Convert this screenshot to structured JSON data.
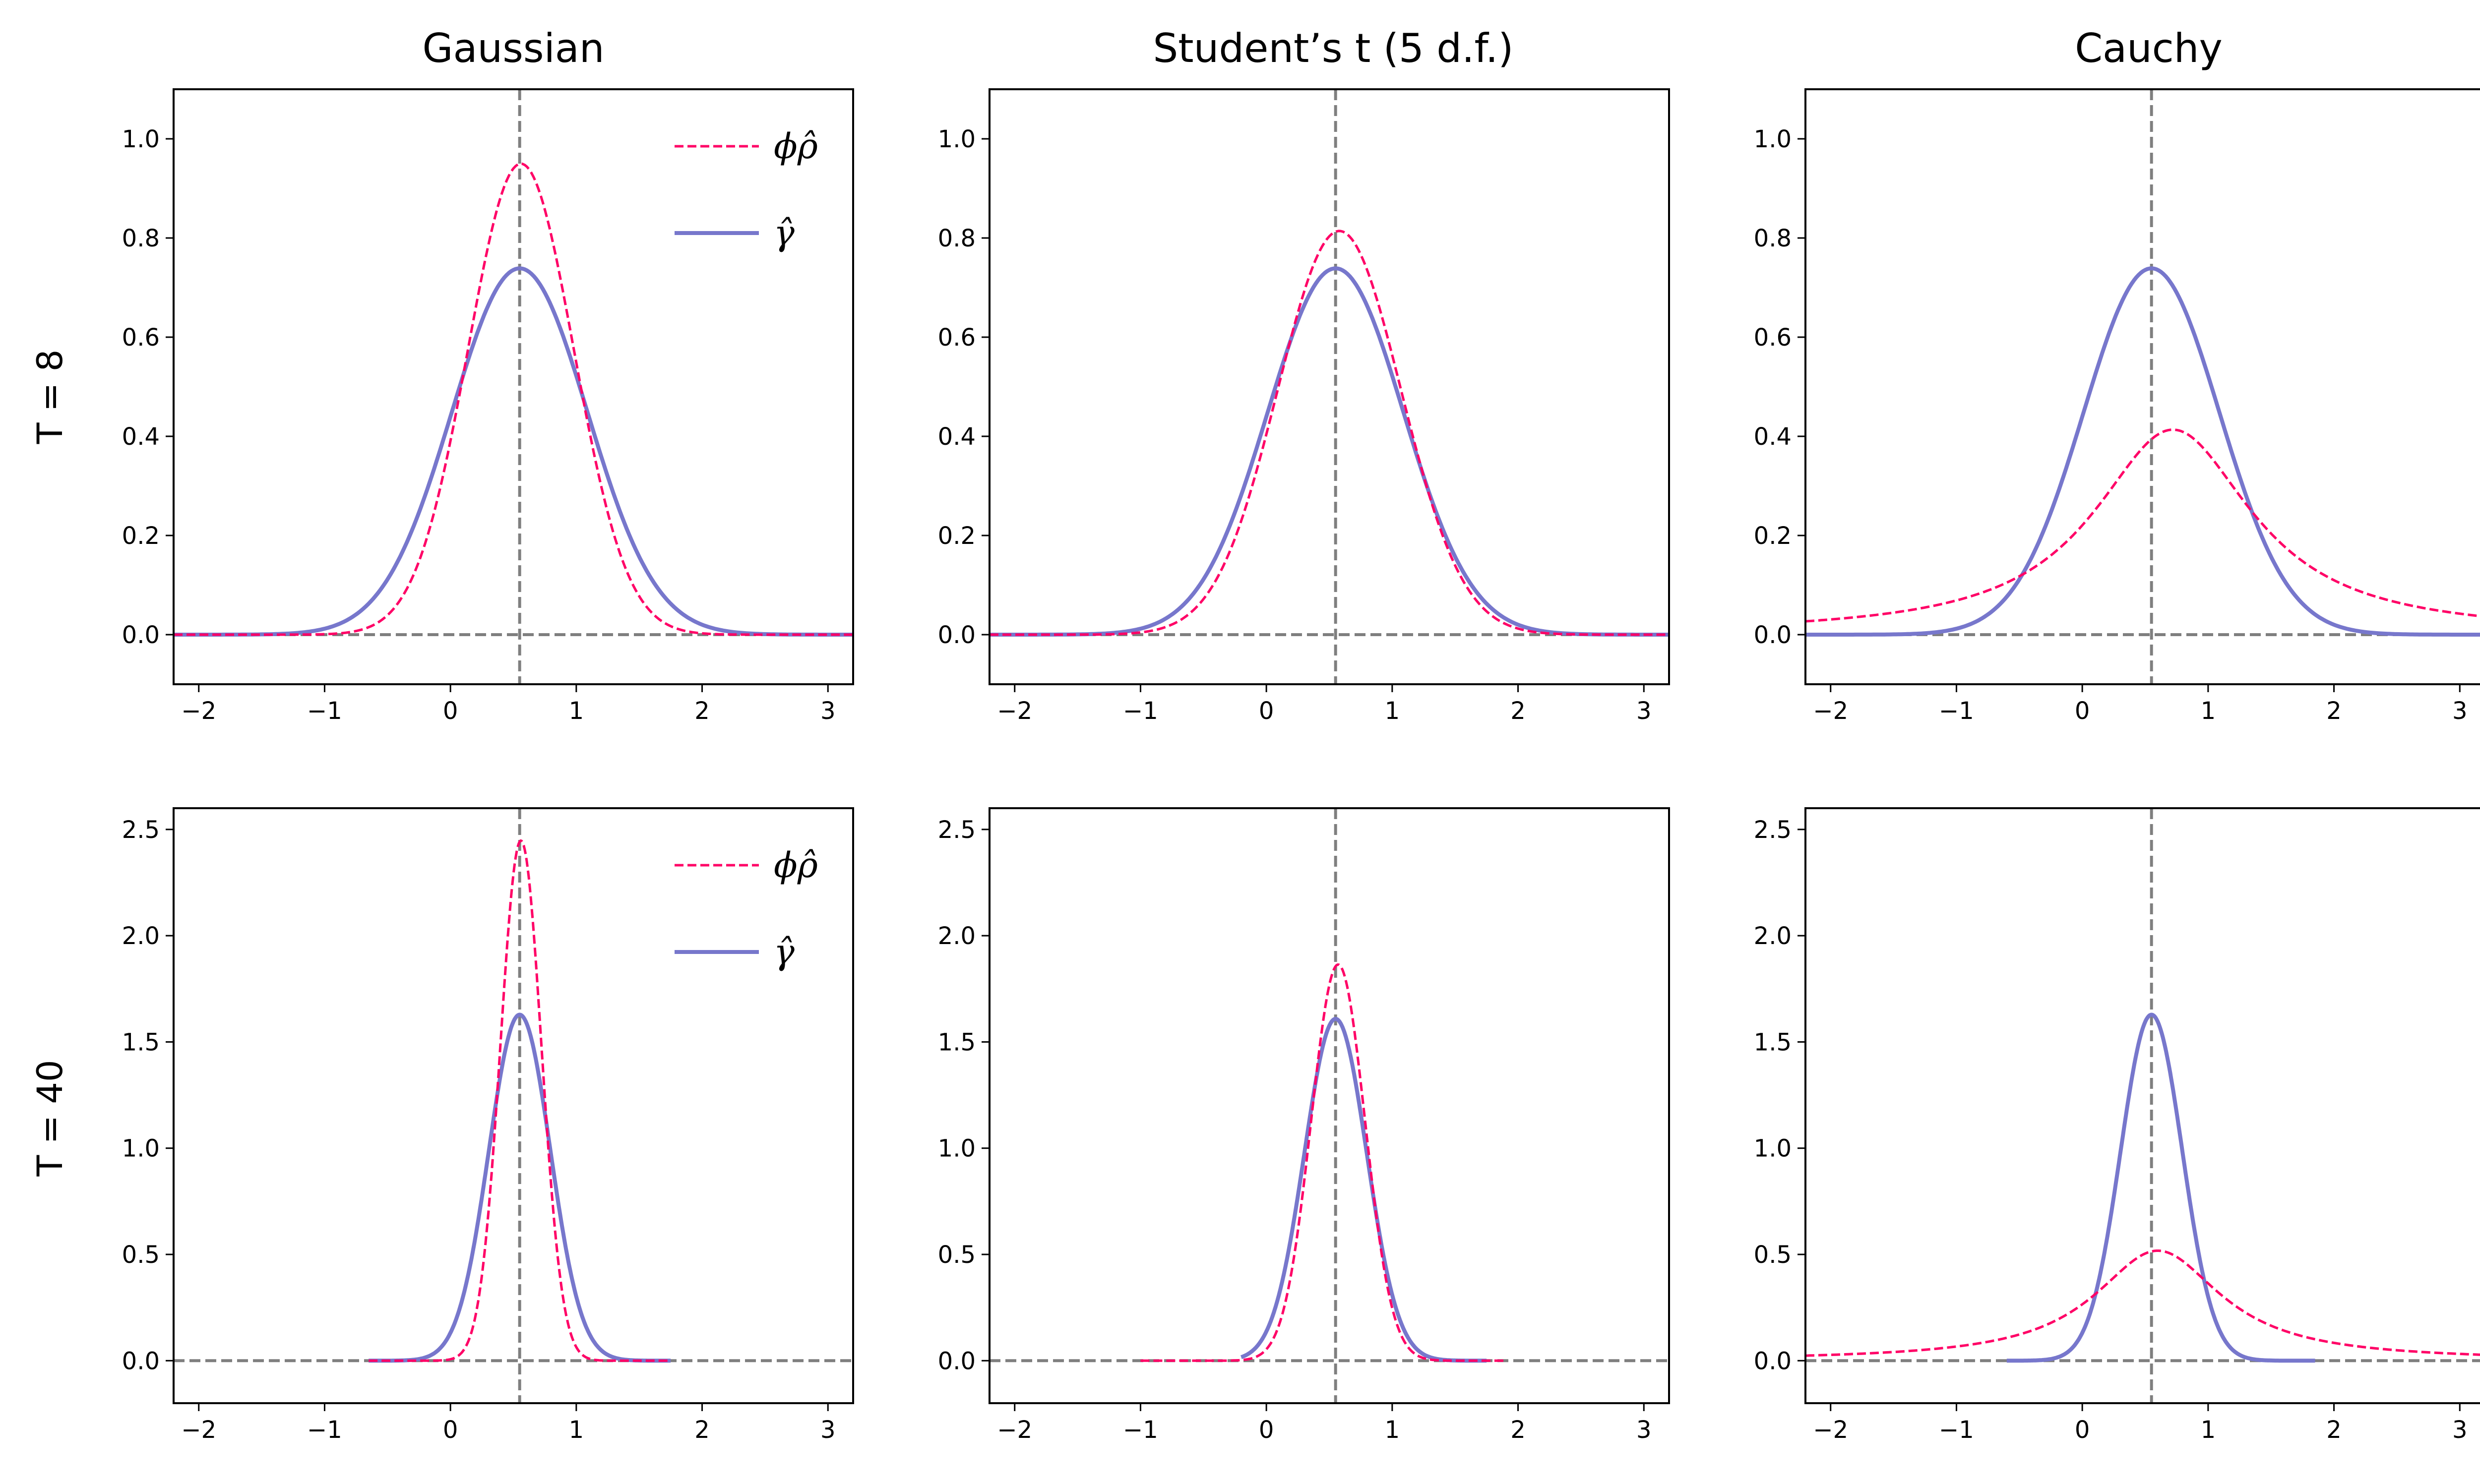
{
  "chart_data": {
    "type": "line",
    "title": "",
    "col_titles": [
      "Gaussian",
      "Student’s t (5 d.f.)",
      "Cauchy"
    ],
    "row_labels": [
      "T = 8",
      "T = 40"
    ],
    "colors": {
      "phi": "#ff0066",
      "gamma": "#7777cc",
      "ref": "#7f7f7f",
      "axis": "#000000"
    },
    "legend": [
      {
        "label": "ϕρ̂",
        "style": "dashed",
        "color": "#ff0066"
      },
      {
        "label": "γ̂",
        "style": "solid",
        "color": "#7777cc"
      }
    ],
    "xlim": [
      -2.2,
      3.2
    ],
    "xticks": [
      -2,
      -1,
      0,
      1,
      2,
      3
    ],
    "xtick_labels": [
      "−2",
      "−1",
      "0",
      "1",
      "2",
      "3"
    ],
    "vline_x": 0.55,
    "hline_y": 0,
    "rows": [
      {
        "ylim": [
          -0.1,
          1.1
        ],
        "yticks": [
          0.0,
          0.2,
          0.4,
          0.6,
          0.8,
          1.0
        ],
        "ytick_labels": [
          "0.0",
          "0.2",
          "0.4",
          "0.6",
          "0.8",
          "1.0"
        ],
        "series": [
          {
            "name": "phi",
            "dist": "normal",
            "mu": 0.56,
            "sigma": 0.42,
            "x_range": [
              -2.2,
              3.2
            ]
          },
          {
            "name": "gamma",
            "dist": "normal",
            "mu": 0.55,
            "sigma": 0.54,
            "x_range": [
              -2.2,
              3.2
            ]
          }
        ],
        "panels": [
          {
            "phi": {
              "dist": "normal",
              "mu": 0.56,
              "sigma": 0.42,
              "x_range": [
                -2.2,
                3.2
              ]
            },
            "gamma": {
              "dist": "normal",
              "mu": 0.55,
              "sigma": 0.54,
              "x_range": [
                -2.2,
                3.2
              ]
            },
            "legend": true
          },
          {
            "phi": {
              "dist": "normal",
              "mu": 0.58,
              "sigma": 0.49,
              "x_range": [
                -2.2,
                3.2
              ]
            },
            "gamma": {
              "dist": "normal",
              "mu": 0.55,
              "sigma": 0.54,
              "x_range": [
                -2.2,
                3.2
              ]
            },
            "legend": false
          },
          {
            "phi": {
              "dist": "cauchy",
              "mu": 0.72,
              "scale": 0.77,
              "x_range": [
                -2.2,
                3.2
              ]
            },
            "gamma": {
              "dist": "normal",
              "mu": 0.55,
              "sigma": 0.54,
              "x_range": [
                -2.2,
                3.2
              ]
            },
            "legend": false
          }
        ]
      },
      {
        "ylim": [
          -0.2,
          2.6
        ],
        "yticks": [
          0.0,
          0.5,
          1.0,
          1.5,
          2.0,
          2.5
        ],
        "ytick_labels": [
          "0.0",
          "0.5",
          "1.0",
          "1.5",
          "2.0",
          "2.5"
        ],
        "panels": [
          {
            "phi": {
              "dist": "normal",
              "mu": 0.56,
              "sigma": 0.163,
              "x_range": [
                -0.65,
                1.75
              ]
            },
            "gamma": {
              "dist": "normal",
              "mu": 0.55,
              "sigma": 0.245,
              "x_range": [
                -0.65,
                1.75
              ]
            },
            "legend": true
          },
          {
            "phi": {
              "dist": "normal",
              "mu": 0.57,
              "sigma": 0.214,
              "x_range": [
                -1.0,
                1.9
              ]
            },
            "gamma": {
              "dist": "normal",
              "mu": 0.55,
              "sigma": 0.248,
              "x_range": [
                -0.2,
                1.75
              ]
            },
            "legend": false
          },
          {
            "phi": {
              "dist": "cauchy",
              "mu": 0.6,
              "scale": 0.615,
              "x_range": [
                -2.2,
                3.2
              ]
            },
            "gamma": {
              "dist": "normal",
              "mu": 0.55,
              "sigma": 0.245,
              "x_range": [
                -0.6,
                1.85
              ]
            },
            "legend": false
          }
        ]
      }
    ]
  }
}
